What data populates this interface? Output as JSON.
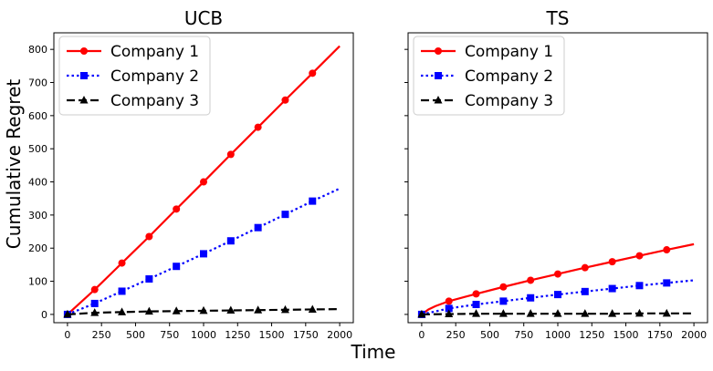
{
  "figure": {
    "ylabel": "Cumulative Regret",
    "xlabel": "Time"
  },
  "chart_data": [
    {
      "type": "line",
      "title": "UCB",
      "xlim": [
        -100,
        2100
      ],
      "ylim": [
        -25,
        850
      ],
      "xticks": [
        0,
        250,
        500,
        750,
        1000,
        1250,
        1500,
        1750,
        2000
      ],
      "yticks": [
        0,
        100,
        200,
        300,
        400,
        500,
        600,
        700,
        800
      ],
      "legend_position": "top-left",
      "series": [
        {
          "name": "Company 1",
          "color": "#ff0000",
          "marker": "circle",
          "linestyle": "solid",
          "x": [
            0,
            200,
            400,
            600,
            800,
            1000,
            1200,
            1400,
            1600,
            1800,
            2000
          ],
          "y": [
            0,
            75,
            155,
            235,
            318,
            400,
            483,
            565,
            647,
            728,
            810
          ],
          "marker_x": [
            0,
            200,
            400,
            600,
            800,
            1000,
            1200,
            1400,
            1600,
            1800
          ]
        },
        {
          "name": "Company 2",
          "color": "#0000ff",
          "marker": "square",
          "linestyle": "dotted",
          "x": [
            0,
            200,
            400,
            600,
            800,
            1000,
            1200,
            1400,
            1600,
            1800,
            2000
          ],
          "y": [
            0,
            33,
            70,
            107,
            145,
            183,
            222,
            262,
            302,
            342,
            380
          ],
          "marker_x": [
            0,
            200,
            400,
            600,
            800,
            1000,
            1200,
            1400,
            1600,
            1800
          ]
        },
        {
          "name": "Company 3",
          "color": "#000000",
          "marker": "triangle",
          "linestyle": "dashed",
          "x": [
            0,
            200,
            400,
            600,
            800,
            1000,
            1200,
            1400,
            1600,
            1800,
            2000
          ],
          "y": [
            0,
            5,
            7,
            9,
            10,
            11,
            12,
            13,
            14,
            15,
            16
          ],
          "marker_x": [
            0,
            200,
            400,
            600,
            800,
            1000,
            1200,
            1400,
            1600,
            1800
          ]
        }
      ]
    },
    {
      "type": "line",
      "title": "TS",
      "xlim": [
        -100,
        2100
      ],
      "ylim": [
        -25,
        850
      ],
      "xticks": [
        0,
        250,
        500,
        750,
        1000,
        1250,
        1500,
        1750,
        2000
      ],
      "yticks": [],
      "legend_position": "top-left",
      "series": [
        {
          "name": "Company 1",
          "color": "#ff0000",
          "marker": "circle",
          "linestyle": "solid",
          "x": [
            0,
            50,
            100,
            200,
            400,
            600,
            800,
            1000,
            1200,
            1400,
            1600,
            1800,
            2000
          ],
          "y": [
            0,
            15,
            25,
            40,
            62,
            83,
            103,
            122,
            141,
            159,
            177,
            195,
            212
          ],
          "marker_x": [
            0,
            200,
            400,
            600,
            800,
            1000,
            1200,
            1400,
            1600,
            1800
          ]
        },
        {
          "name": "Company 2",
          "color": "#0000ff",
          "marker": "square",
          "linestyle": "dotted",
          "x": [
            0,
            200,
            400,
            600,
            800,
            1000,
            1200,
            1400,
            1600,
            1800,
            2000
          ],
          "y": [
            0,
            18,
            30,
            40,
            50,
            60,
            69,
            78,
            87,
            95,
            103
          ],
          "marker_x": [
            0,
            200,
            400,
            600,
            800,
            1000,
            1200,
            1400,
            1600,
            1800
          ]
        },
        {
          "name": "Company 3",
          "color": "#000000",
          "marker": "triangle",
          "linestyle": "dashed",
          "x": [
            0,
            200,
            400,
            600,
            800,
            1000,
            1200,
            1400,
            1600,
            1800,
            2000
          ],
          "y": [
            0,
            1,
            2,
            2,
            2,
            2,
            2,
            2,
            3,
            3,
            3
          ],
          "marker_x": [
            0,
            200,
            400,
            600,
            800,
            1000,
            1200,
            1400,
            1600,
            1800
          ]
        }
      ]
    }
  ]
}
